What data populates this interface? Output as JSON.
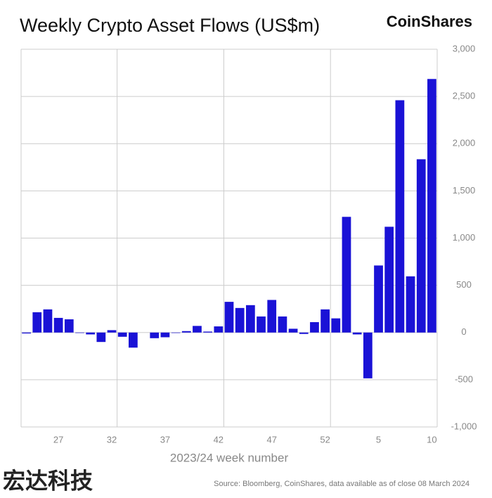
{
  "brand": "CoinShares",
  "watermark": "宏达科技",
  "chart_data": {
    "type": "bar",
    "title": "Weekly Crypto Asset Flows (US$m)",
    "x_label": "2023/24 week number",
    "source": "Source: Bloomberg, CoinShares, data available as of close 08 March 2024",
    "categories": [
      null,
      null,
      null,
      "27",
      null,
      null,
      null,
      null,
      "32",
      null,
      null,
      null,
      null,
      "37",
      null,
      null,
      null,
      null,
      "42",
      null,
      null,
      null,
      null,
      "47",
      null,
      null,
      null,
      null,
      "52",
      null,
      null,
      null,
      null,
      "5",
      null,
      null,
      null,
      null,
      "10"
    ],
    "values": [
      -10,
      215,
      245,
      155,
      140,
      -5,
      -20,
      -100,
      25,
      -45,
      -160,
      0,
      -60,
      -50,
      -5,
      15,
      70,
      10,
      65,
      325,
      260,
      290,
      170,
      345,
      170,
      40,
      -15,
      110,
      245,
      150,
      1225,
      -20,
      -485,
      710,
      1120,
      2460,
      595,
      1835,
      2685
    ],
    "color": "#1a12d6",
    "ylim": [
      -1000,
      3000
    ],
    "yticks": [
      {
        "value": -1000,
        "label": "-1,000"
      },
      -500,
      0,
      500,
      {
        "value": 1000,
        "label": "1,000"
      },
      {
        "value": 1500,
        "label": "1,500"
      },
      {
        "value": 2000,
        "label": "2,000"
      },
      {
        "value": 2500,
        "label": "2,500"
      },
      {
        "value": 3000,
        "label": "3,000"
      }
    ],
    "grid": true
  }
}
